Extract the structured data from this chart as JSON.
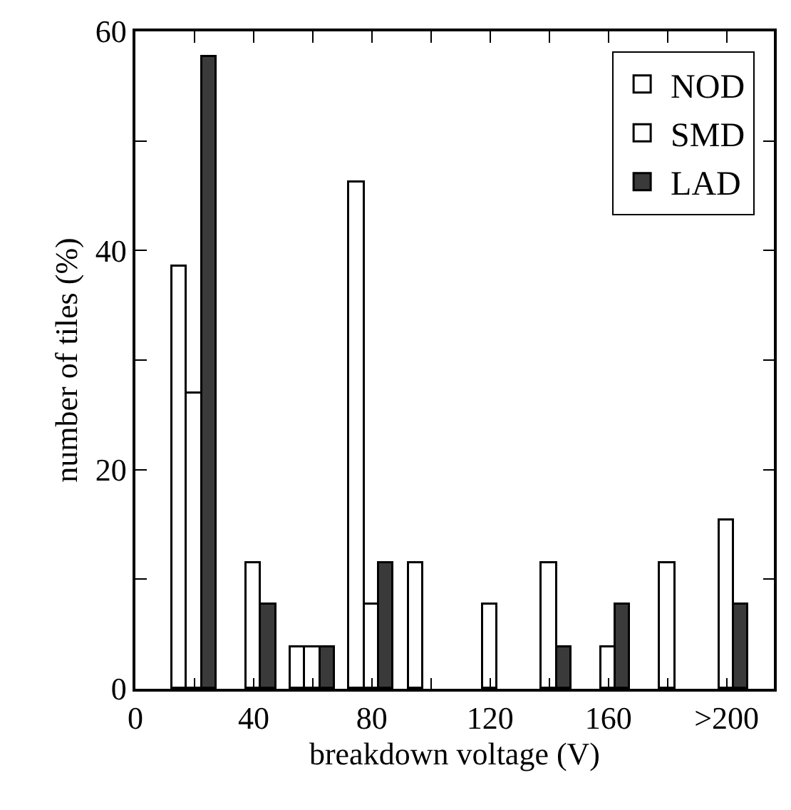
{
  "chart_data": {
    "type": "bar",
    "xlabel": "breakdown voltage (V)",
    "ylabel": "number of tiles (%)",
    "series": [
      {
        "name": "NOD",
        "color": "#ffffff",
        "x": [
          15,
          35,
          55,
          75,
          95
        ],
        "values": [
          38.5,
          null,
          3.8,
          46.2,
          11.5
        ]
      },
      {
        "name": "SMD",
        "color": "#ffffff",
        "x": [
          20,
          40,
          60,
          80,
          100,
          120,
          140,
          160,
          180,
          200
        ],
        "values": [
          26.9,
          11.5,
          3.8,
          7.7,
          null,
          7.7,
          11.5,
          3.8,
          11.5,
          15.4
        ]
      },
      {
        "name": "LAD",
        "color": "#3a3a3a",
        "x": [
          25,
          45,
          65,
          85,
          105,
          125,
          145,
          165,
          185,
          205
        ],
        "values": [
          57.7,
          7.7,
          3.8,
          11.5,
          null,
          null,
          3.8,
          7.7,
          null,
          7.7
        ]
      }
    ],
    "xlim": [
      0,
      216
    ],
    "xticks": [
      0,
      {
        "value": 20,
        "label": null
      },
      40,
      {
        "value": 60,
        "label": null
      },
      80,
      {
        "value": 100,
        "label": null
      },
      120,
      {
        "value": 140,
        "label": null
      },
      160,
      {
        "value": 180,
        "label": null
      },
      {
        "value": 200,
        "label": ">200"
      }
    ],
    "ylim": [
      0,
      60
    ],
    "yticks": [
      0,
      {
        "value": 10,
        "label": null
      },
      20,
      {
        "value": 30,
        "label": null
      },
      40,
      {
        "value": 50,
        "label": null
      },
      60
    ],
    "legend": "top right"
  }
}
